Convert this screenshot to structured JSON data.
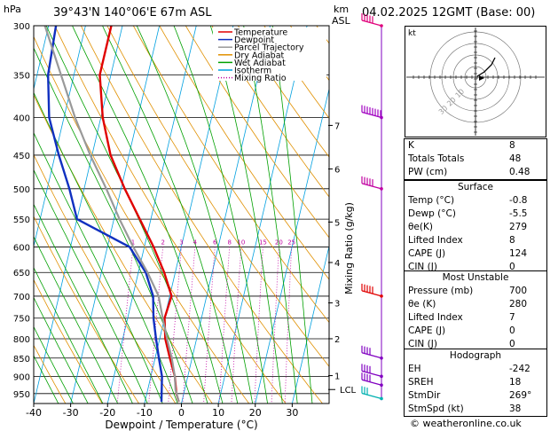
{
  "header": {
    "hpa_label": "hPa",
    "location": "39°43'N  140°06'E  67m  ASL",
    "km_label": "km",
    "asl_label": "ASL",
    "datetime": "04.02.2025  12GMT  (Base: 00)"
  },
  "legend": {
    "items": [
      {
        "label": "Temperature",
        "color": "#e00000",
        "style": "solid"
      },
      {
        "label": "Dewpoint",
        "color": "#1030c0",
        "style": "solid"
      },
      {
        "label": "Parcel Trajectory",
        "color": "#999999",
        "style": "solid"
      },
      {
        "label": "Dry Adiabat",
        "color": "#e09000",
        "style": "solid"
      },
      {
        "label": "Wet Adiabat",
        "color": "#00a000",
        "style": "solid"
      },
      {
        "label": "Isotherm",
        "color": "#00a0e0",
        "style": "solid"
      },
      {
        "label": "Mixing Ratio",
        "color": "#c000a0",
        "style": "dotted"
      }
    ]
  },
  "chart_data": {
    "type": "line",
    "xlabel": "Dewpoint / Temperature (°C)",
    "ylabel_left": "hPa",
    "ylabel_right": "Mixing Ratio (g/kg)",
    "xlim": [
      -40,
      40
    ],
    "x_ticks": [
      -40,
      -30,
      -20,
      -10,
      0,
      10,
      20,
      30
    ],
    "pressure_ticks": [
      300,
      350,
      400,
      450,
      500,
      550,
      600,
      650,
      700,
      750,
      800,
      850,
      900,
      950
    ],
    "pressure_range": [
      300,
      980
    ],
    "km_ticks": [
      {
        "label": "7",
        "p": 410
      },
      {
        "label": "6",
        "p": 470
      },
      {
        "label": "5",
        "p": 555
      },
      {
        "label": "4",
        "p": 630
      },
      {
        "label": "3",
        "p": 715
      },
      {
        "label": "2",
        "p": 800
      },
      {
        "label": "1",
        "p": 898
      }
    ],
    "lcl": {
      "label": "LCL",
      "p": 938
    },
    "mixing_ratio_labels": [
      "1",
      "2",
      "3",
      "4",
      "6",
      "8",
      "10",
      "15",
      "20",
      "25"
    ],
    "mixing_ratio_values": [
      1,
      2,
      3,
      4,
      6,
      8,
      10,
      15,
      20,
      25
    ],
    "series": [
      {
        "key": "temperature",
        "color": "#e00000",
        "points": [
          [
            300,
            -43
          ],
          [
            340,
            -43
          ],
          [
            350,
            -43
          ],
          [
            400,
            -39.5
          ],
          [
            450,
            -35
          ],
          [
            500,
            -29
          ],
          [
            550,
            -23
          ],
          [
            600,
            -17.5
          ],
          [
            650,
            -13
          ],
          [
            700,
            -9.5
          ],
          [
            750,
            -10
          ],
          [
            800,
            -8.5
          ],
          [
            850,
            -6
          ],
          [
            900,
            -3.5
          ],
          [
            950,
            -2
          ],
          [
            975,
            -0.8
          ]
        ]
      },
      {
        "key": "dewpoint",
        "color": "#1030c0",
        "points": [
          [
            300,
            -58
          ],
          [
            350,
            -57
          ],
          [
            400,
            -54
          ],
          [
            450,
            -49
          ],
          [
            500,
            -44
          ],
          [
            550,
            -40
          ],
          [
            600,
            -24
          ],
          [
            650,
            -18
          ],
          [
            700,
            -14.5
          ],
          [
            750,
            -13
          ],
          [
            800,
            -11
          ],
          [
            850,
            -9
          ],
          [
            900,
            -7
          ],
          [
            950,
            -6
          ],
          [
            975,
            -5.5
          ]
        ]
      },
      {
        "key": "parcel",
        "color": "#999999",
        "points": [
          [
            300,
            -61
          ],
          [
            350,
            -53.5
          ],
          [
            400,
            -47
          ],
          [
            450,
            -40.5
          ],
          [
            500,
            -34
          ],
          [
            550,
            -28.5
          ],
          [
            600,
            -23
          ],
          [
            650,
            -17.5
          ],
          [
            700,
            -13
          ],
          [
            750,
            -10.5
          ],
          [
            800,
            -8
          ],
          [
            850,
            -5.5
          ],
          [
            900,
            -3.5
          ],
          [
            938,
            -2.5
          ],
          [
            975,
            -0.8
          ]
        ]
      }
    ],
    "wind_barbs": [
      {
        "p": 300,
        "color": "#e0007a",
        "speed_kt": 50
      },
      {
        "p": 400,
        "color": "#a000c0",
        "speed_kt": 75
      },
      {
        "p": 500,
        "color": "#c000a0",
        "speed_kt": 50
      },
      {
        "p": 700,
        "color": "#e00000",
        "speed_kt": 45
      },
      {
        "p": 850,
        "color": "#8000c0",
        "speed_kt": 35
      },
      {
        "p": 900,
        "color": "#8000c0",
        "speed_kt": 35
      },
      {
        "p": 925,
        "color": "#8000c0",
        "speed_kt": 35
      },
      {
        "p": 965,
        "color": "#00b0b0",
        "speed_kt": 30
      }
    ]
  },
  "hodograph": {
    "unit_label": "kt",
    "ring_labels": [
      "10",
      "20",
      "30"
    ]
  },
  "indices": {
    "k_label": "K",
    "k_value": "8",
    "tt_label": "Totals Totals",
    "tt_value": "48",
    "pw_label": "PW (cm)",
    "pw_value": "0.48"
  },
  "surface": {
    "title": "Surface",
    "rows": [
      {
        "label": "Temp (°C)",
        "value": "-0.8"
      },
      {
        "label": "Dewp (°C)",
        "value": "-5.5"
      },
      {
        "label": "θe(K)",
        "value": "279"
      },
      {
        "label": "Lifted Index",
        "value": "8"
      },
      {
        "label": "CAPE (J)",
        "value": "124"
      },
      {
        "label": "CIN (J)",
        "value": "0"
      }
    ]
  },
  "most_unstable": {
    "title": "Most Unstable",
    "rows": [
      {
        "label": "Pressure (mb)",
        "value": "700"
      },
      {
        "label": "θe (K)",
        "value": "280"
      },
      {
        "label": "Lifted Index",
        "value": "7"
      },
      {
        "label": "CAPE (J)",
        "value": "0"
      },
      {
        "label": "CIN (J)",
        "value": "0"
      }
    ]
  },
  "hodograph_table": {
    "title": "Hodograph",
    "rows": [
      {
        "label": "EH",
        "value": "-242"
      },
      {
        "label": "SREH",
        "value": "18"
      },
      {
        "label": "StmDir",
        "value": "269°"
      },
      {
        "label": "StmSpd (kt)",
        "value": "38"
      }
    ]
  },
  "footer": {
    "copyright": "© weatheronline.co.uk"
  }
}
